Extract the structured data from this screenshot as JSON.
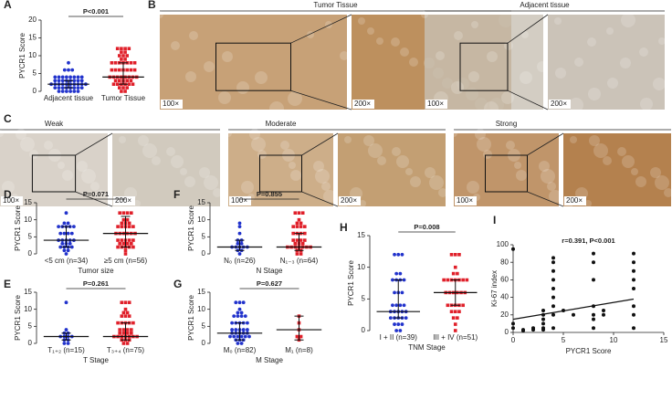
{
  "chart_data": [
    {
      "type": "strip",
      "label": "A",
      "ylabel": "PYCR1 Score",
      "annotation": "P<0.001",
      "categories": [
        "Adjacent tissue",
        "Tumor Tissue"
      ],
      "ylim": [
        0,
        20
      ],
      "yticks": [
        0,
        5,
        10,
        15,
        20
      ],
      "series": [
        {
          "color": "#2233cc",
          "median": 2,
          "iqr": [
            1,
            3
          ],
          "values": [
            0,
            0,
            0,
            0,
            0,
            0,
            1,
            1,
            1,
            1,
            1,
            1,
            1,
            1,
            2,
            2,
            2,
            2,
            2,
            2,
            2,
            2,
            2,
            2,
            3,
            3,
            3,
            3,
            3,
            3,
            3,
            3,
            4,
            4,
            4,
            4,
            4,
            4,
            4,
            4,
            6,
            6,
            6,
            8
          ]
        },
        {
          "color": "#e0202a",
          "median": 4,
          "iqr": [
            2,
            8
          ],
          "values": [
            0,
            0,
            1,
            1,
            1,
            2,
            2,
            2,
            2,
            2,
            2,
            3,
            3,
            3,
            3,
            3,
            4,
            4,
            4,
            4,
            4,
            4,
            4,
            4,
            6,
            6,
            6,
            6,
            6,
            6,
            6,
            8,
            8,
            8,
            8,
            8,
            8,
            8,
            9,
            9,
            10,
            10,
            10,
            11,
            11,
            12,
            12,
            12,
            12
          ]
        }
      ]
    },
    {
      "type": "strip",
      "label": "D",
      "ylabel": "PYCR1 Score",
      "xlabel": "Tumor size",
      "annotation": "P=0.071",
      "categories": [
        "<5 cm (n=34)",
        "≥5 cm (n=56)"
      ],
      "ylim": [
        0,
        15
      ],
      "yticks": [
        0,
        5,
        10,
        15
      ],
      "series": [
        {
          "color": "#2233cc",
          "median": 4,
          "iqr": [
            2,
            8
          ],
          "values": [
            0,
            1,
            1,
            2,
            2,
            2,
            2,
            3,
            3,
            3,
            4,
            4,
            4,
            4,
            4,
            6,
            6,
            6,
            6,
            8,
            8,
            8,
            8,
            8,
            9,
            9,
            12
          ]
        },
        {
          "color": "#e0202a",
          "median": 6,
          "iqr": [
            2,
            11
          ],
          "values": [
            0,
            1,
            2,
            2,
            2,
            2,
            2,
            3,
            3,
            3,
            3,
            4,
            4,
            4,
            4,
            4,
            6,
            6,
            6,
            6,
            6,
            6,
            8,
            8,
            8,
            8,
            8,
            9,
            9,
            9,
            10,
            10,
            12,
            12,
            12,
            12
          ]
        }
      ]
    },
    {
      "type": "strip",
      "label": "E",
      "ylabel": "PYCR1 Score",
      "xlabel": "T Stage",
      "annotation": "P=0.261",
      "categories": [
        "T₁₊₂ (n=15)",
        "T₃₊₄ (n=75)"
      ],
      "ylim": [
        0,
        15
      ],
      "yticks": [
        0,
        5,
        10,
        15
      ],
      "series": [
        {
          "color": "#2233cc",
          "median": 2,
          "iqr": [
            1,
            3
          ],
          "values": [
            0,
            0,
            1,
            1,
            2,
            2,
            2,
            2,
            3,
            3,
            4,
            12
          ]
        },
        {
          "color": "#e0202a",
          "median": 2,
          "iqr": [
            1,
            6
          ],
          "values": [
            0,
            0,
            1,
            1,
            1,
            2,
            2,
            2,
            2,
            2,
            2,
            2,
            3,
            3,
            3,
            3,
            4,
            4,
            4,
            4,
            6,
            6,
            6,
            6,
            6,
            8,
            8,
            8,
            9,
            9,
            10,
            12,
            12,
            12
          ]
        }
      ]
    },
    {
      "type": "strip",
      "label": "F",
      "ylabel": "PYCR1 Score",
      "xlabel": "N Stage",
      "annotation": "P=0.855",
      "categories": [
        "N₀ (n=26)",
        "N₁₋₃ (n=64)"
      ],
      "ylim": [
        0,
        15
      ],
      "yticks": [
        0,
        5,
        10,
        15
      ],
      "series": [
        {
          "color": "#2233cc",
          "median": 2,
          "iqr": [
            1,
            4
          ],
          "values": [
            0,
            1,
            1,
            2,
            2,
            2,
            2,
            2,
            3,
            3,
            4,
            4,
            6,
            8,
            9
          ]
        },
        {
          "color": "#e0202a",
          "median": 2,
          "iqr": [
            1,
            6
          ],
          "values": [
            0,
            0,
            1,
            1,
            2,
            2,
            2,
            2,
            2,
            2,
            2,
            3,
            3,
            3,
            4,
            4,
            4,
            4,
            6,
            6,
            6,
            6,
            8,
            8,
            8,
            8,
            9,
            9,
            10,
            12,
            12,
            12
          ]
        }
      ]
    },
    {
      "type": "strip",
      "label": "G",
      "ylabel": "PYCR1 Score",
      "xlabel": "M Stage",
      "annotation": "P=0.627",
      "categories": [
        "M₀ (n=82)",
        "M₁ (n=8)"
      ],
      "ylim": [
        0,
        15
      ],
      "yticks": [
        0,
        5,
        10,
        15
      ],
      "series": [
        {
          "color": "#2233cc",
          "median": 3,
          "iqr": [
            1,
            6
          ],
          "values": [
            0,
            0,
            1,
            1,
            1,
            2,
            2,
            2,
            2,
            2,
            2,
            3,
            3,
            3,
            3,
            3,
            4,
            4,
            4,
            4,
            4,
            6,
            6,
            6,
            6,
            6,
            8,
            8,
            8,
            8,
            9,
            9,
            10,
            12,
            12,
            12
          ]
        },
        {
          "color": "#e0202a",
          "median": 4,
          "iqr": [
            1,
            8
          ],
          "values": [
            1,
            2,
            2,
            4,
            6,
            8
          ]
        }
      ]
    },
    {
      "type": "strip",
      "label": "H",
      "ylabel": "PYCR1 Score",
      "xlabel": "TNM Stage",
      "annotation": "P=0.008",
      "categories": [
        "I + II (n=39)",
        "III + IV (n=51)"
      ],
      "ylim": [
        0,
        15
      ],
      "yticks": [
        0,
        5,
        10,
        15
      ],
      "series": [
        {
          "color": "#2233cc",
          "median": 3,
          "iqr": [
            2,
            8
          ],
          "values": [
            0,
            0,
            1,
            1,
            1,
            2,
            2,
            2,
            2,
            2,
            3,
            3,
            3,
            3,
            3,
            4,
            4,
            4,
            4,
            6,
            6,
            6,
            8,
            8,
            8,
            8,
            9,
            9,
            12,
            12,
            12
          ]
        },
        {
          "color": "#e0202a",
          "median": 6,
          "iqr": [
            4,
            8
          ],
          "values": [
            0,
            1,
            2,
            2,
            3,
            3,
            3,
            4,
            4,
            4,
            4,
            4,
            6,
            6,
            6,
            6,
            6,
            6,
            8,
            8,
            8,
            8,
            8,
            8,
            8,
            9,
            9,
            10,
            12,
            12,
            12
          ]
        }
      ]
    },
    {
      "type": "scatter",
      "label": "I",
      "ylabel": "Ki-67 index",
      "xlabel": "PYCR1 Score",
      "annotation": "r=0.391, P<0.001",
      "color": "#111",
      "xlim": [
        0,
        15
      ],
      "xticks": [
        0,
        5,
        10,
        15
      ],
      "ylim": [
        0,
        100
      ],
      "yticks": [
        0,
        20,
        40,
        60,
        80,
        100
      ],
      "x": [
        0,
        0,
        0,
        1,
        1,
        2,
        2,
        3,
        3,
        3,
        3,
        3,
        3,
        4,
        4,
        4,
        4,
        4,
        4,
        4,
        4,
        4,
        5,
        6,
        8,
        8,
        8,
        8,
        8,
        8,
        8,
        9,
        9,
        12,
        12,
        12,
        12,
        12,
        12,
        12,
        12
      ],
      "values": [
        95,
        10,
        5,
        2,
        3,
        5,
        3,
        5,
        10,
        15,
        20,
        25,
        3,
        85,
        80,
        70,
        60,
        50,
        40,
        30,
        20,
        5,
        25,
        20,
        90,
        80,
        60,
        30,
        20,
        15,
        5,
        25,
        20,
        90,
        80,
        70,
        60,
        50,
        30,
        20,
        5
      ],
      "fit": {
        "x": [
          0,
          12
        ],
        "y": [
          15,
          38
        ]
      }
    }
  ],
  "images": [
    {
      "label": "B",
      "title": "Tumor Tissue",
      "zoom": [
        "100×",
        "200×"
      ],
      "tone": "#b98a55"
    },
    {
      "label": "",
      "title": "Adjacent tissue",
      "zoom": [
        "100×",
        "200×"
      ],
      "tone": "#c8c0b4"
    },
    {
      "label": "C",
      "title": "Weak",
      "zoom": [
        "100×",
        "200×"
      ],
      "tone": "#cfc7bb"
    },
    {
      "label": "",
      "title": "Moderate",
      "zoom": [
        "100×",
        "200×"
      ],
      "tone": "#c09a6c"
    },
    {
      "label": "",
      "title": "Strong",
      "zoom": [
        "100×",
        "200×"
      ],
      "tone": "#b07a45"
    }
  ]
}
